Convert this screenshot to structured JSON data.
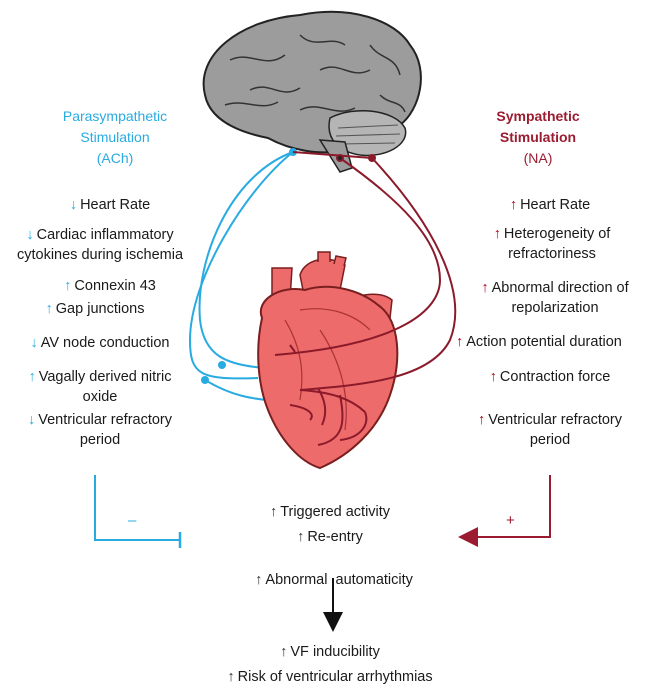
{
  "parasympathetic": {
    "title_line1": "Parasympathetic",
    "title_line2": "Stimulation",
    "title_line3": "(ACh)",
    "items": [
      {
        "arrow": "down",
        "line1": "Heart Rate",
        "line2": ""
      },
      {
        "arrow": "down",
        "line1": "Cardiac inflammatory",
        "line2": "cytokines during ischemia"
      },
      {
        "arrow": "up",
        "line1": "Connexin 43",
        "line2": ""
      },
      {
        "arrow": "up",
        "line1": "Gap junctions",
        "line2": ""
      },
      {
        "arrow": "down",
        "line1": "AV node conduction",
        "line2": ""
      },
      {
        "arrow": "up",
        "line1": "Vagally derived nitric",
        "line2": "oxide"
      },
      {
        "arrow": "down",
        "line1": "Ventricular refractory",
        "line2": "period"
      }
    ],
    "effect_sign": "–"
  },
  "sympathetic": {
    "title_line1": "Sympathetic",
    "title_line2": "Stimulation",
    "title_line3": "(NA)",
    "items": [
      {
        "arrow": "up",
        "line1": "Heart Rate",
        "line2": ""
      },
      {
        "arrow": "up",
        "line1": "Heterogeneity of",
        "line2": "refractoriness"
      },
      {
        "arrow": "up",
        "line1": "Abnormal direction of",
        "line2": "repolarization"
      },
      {
        "arrow": "up",
        "line1": "Action potential duration",
        "line2": ""
      },
      {
        "arrow": "up",
        "line1": "Contraction force",
        "line2": ""
      },
      {
        "arrow": "up",
        "line1": "Ventricular refractory",
        "line2": "period"
      }
    ],
    "effect_sign": "+"
  },
  "mechanisms": [
    "Triggered activity",
    "Re-entry",
    "Abnormal  automaticity"
  ],
  "outcomes": [
    "VF inducibility",
    "Risk of ventricular arrhythmias"
  ],
  "colors": {
    "parasympathetic": "#29abe2",
    "sympathetic": "#9b1b30",
    "sympathetic_arrow": "#b3001b",
    "heart": "#ee6b6b",
    "brain": "#9a9a9a"
  },
  "icons": [
    "brain-illustration",
    "heart-illustration"
  ]
}
